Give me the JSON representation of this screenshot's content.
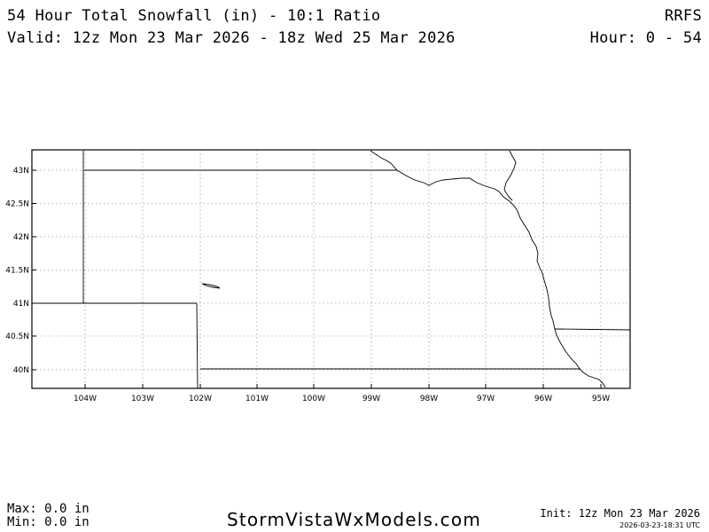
{
  "header": {
    "title": "54 Hour Total Snowfall (in) - 10:1 Ratio",
    "model": "RRFS",
    "valid": "Valid: 12z Mon 23 Mar 2026 - 18z Wed 25 Mar 2026",
    "hours": "Hour: 0 - 54"
  },
  "map": {
    "lat_labels": [
      "43N",
      "42.5N",
      "42N",
      "41.5N",
      "41N",
      "40.5N",
      "40N"
    ],
    "lon_labels": [
      "104W",
      "103W",
      "102W",
      "101W",
      "100W",
      "99W",
      "98W",
      "97W",
      "96W",
      "95W"
    ]
  },
  "footer": {
    "max": "Max: 0.0 in",
    "min": "Min: 0.0 in",
    "site": "StormVistaWxModels.com",
    "init": "Init: 12z Mon 23 Mar 2026",
    "generated": "2026-03-23-18:31 UTC"
  }
}
